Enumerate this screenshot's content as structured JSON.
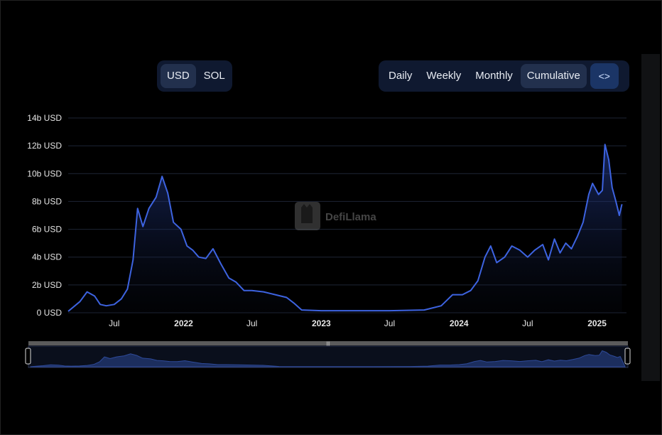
{
  "toggles": {
    "currency": [
      {
        "label": "USD",
        "active": true
      },
      {
        "label": "SOL",
        "active": false
      }
    ],
    "period": [
      {
        "label": "Daily",
        "active": false
      },
      {
        "label": "Weekly",
        "active": false
      },
      {
        "label": "Monthly",
        "active": false
      },
      {
        "label": "Cumulative",
        "active": true
      }
    ],
    "embed_label": "<>"
  },
  "watermark": "DefiLlama",
  "colors": {
    "line": "#3d63e0",
    "grid": "#1e2535",
    "panel": "#0f1930"
  },
  "chart_data": {
    "type": "area",
    "title": "",
    "xlabel": "",
    "ylabel": "",
    "y_unit": "USD",
    "ylim": [
      0,
      14
    ],
    "y_ticks": [
      "0 USD",
      "2b USD",
      "4b USD",
      "6b USD",
      "8b USD",
      "10b USD",
      "12b USD",
      "14b USD"
    ],
    "x_ticks": [
      "Jul",
      "2022",
      "Jul",
      "2023",
      "Jul",
      "2024",
      "Jul",
      "2025"
    ],
    "grid": true,
    "series": [
      {
        "values_unit": "billion USD",
        "points": [
          [
            "2021-03-01",
            0.1
          ],
          [
            "2021-04-01",
            0.8
          ],
          [
            "2021-04-20",
            1.5
          ],
          [
            "2021-05-10",
            1.2
          ],
          [
            "2021-05-25",
            0.6
          ],
          [
            "2021-06-10",
            0.5
          ],
          [
            "2021-07-01",
            0.6
          ],
          [
            "2021-07-20",
            1.0
          ],
          [
            "2021-08-05",
            1.7
          ],
          [
            "2021-08-20",
            3.8
          ],
          [
            "2021-09-01",
            7.5
          ],
          [
            "2021-09-15",
            6.2
          ],
          [
            "2021-10-01",
            7.5
          ],
          [
            "2021-10-20",
            8.3
          ],
          [
            "2021-11-05",
            9.8
          ],
          [
            "2021-11-20",
            8.6
          ],
          [
            "2021-12-05",
            6.5
          ],
          [
            "2021-12-25",
            6.0
          ],
          [
            "2022-01-10",
            4.8
          ],
          [
            "2022-01-25",
            4.5
          ],
          [
            "2022-02-10",
            4.0
          ],
          [
            "2022-03-01",
            3.9
          ],
          [
            "2022-03-20",
            4.6
          ],
          [
            "2022-04-10",
            3.5
          ],
          [
            "2022-05-01",
            2.5
          ],
          [
            "2022-05-20",
            2.2
          ],
          [
            "2022-06-10",
            1.6
          ],
          [
            "2022-07-01",
            1.6
          ],
          [
            "2022-08-01",
            1.5
          ],
          [
            "2022-09-01",
            1.3
          ],
          [
            "2022-10-01",
            1.1
          ],
          [
            "2022-10-20",
            0.7
          ],
          [
            "2022-11-10",
            0.2
          ],
          [
            "2023-01-01",
            0.15
          ],
          [
            "2023-04-01",
            0.15
          ],
          [
            "2023-07-01",
            0.15
          ],
          [
            "2023-10-01",
            0.2
          ],
          [
            "2023-11-15",
            0.5
          ],
          [
            "2023-12-15",
            1.3
          ],
          [
            "2024-01-10",
            1.3
          ],
          [
            "2024-02-01",
            1.6
          ],
          [
            "2024-02-20",
            2.3
          ],
          [
            "2024-03-10",
            4.0
          ],
          [
            "2024-03-25",
            4.8
          ],
          [
            "2024-04-10",
            3.6
          ],
          [
            "2024-05-01",
            4.0
          ],
          [
            "2024-05-20",
            4.8
          ],
          [
            "2024-06-10",
            4.5
          ],
          [
            "2024-07-01",
            4.0
          ],
          [
            "2024-07-20",
            4.5
          ],
          [
            "2024-08-10",
            4.9
          ],
          [
            "2024-08-25",
            3.8
          ],
          [
            "2024-09-10",
            5.3
          ],
          [
            "2024-09-25",
            4.3
          ],
          [
            "2024-10-10",
            5.0
          ],
          [
            "2024-10-25",
            4.6
          ],
          [
            "2024-11-10",
            5.5
          ],
          [
            "2024-11-25",
            6.5
          ],
          [
            "2024-12-10",
            8.5
          ],
          [
            "2024-12-20",
            9.3
          ],
          [
            "2025-01-05",
            8.5
          ],
          [
            "2025-01-15",
            8.8
          ],
          [
            "2025-01-22",
            12.1
          ],
          [
            "2025-02-01",
            11.0
          ],
          [
            "2025-02-10",
            9.0
          ],
          [
            "2025-02-20",
            8.0
          ],
          [
            "2025-03-01",
            7.0
          ],
          [
            "2025-03-08",
            7.8
          ]
        ]
      }
    ]
  }
}
